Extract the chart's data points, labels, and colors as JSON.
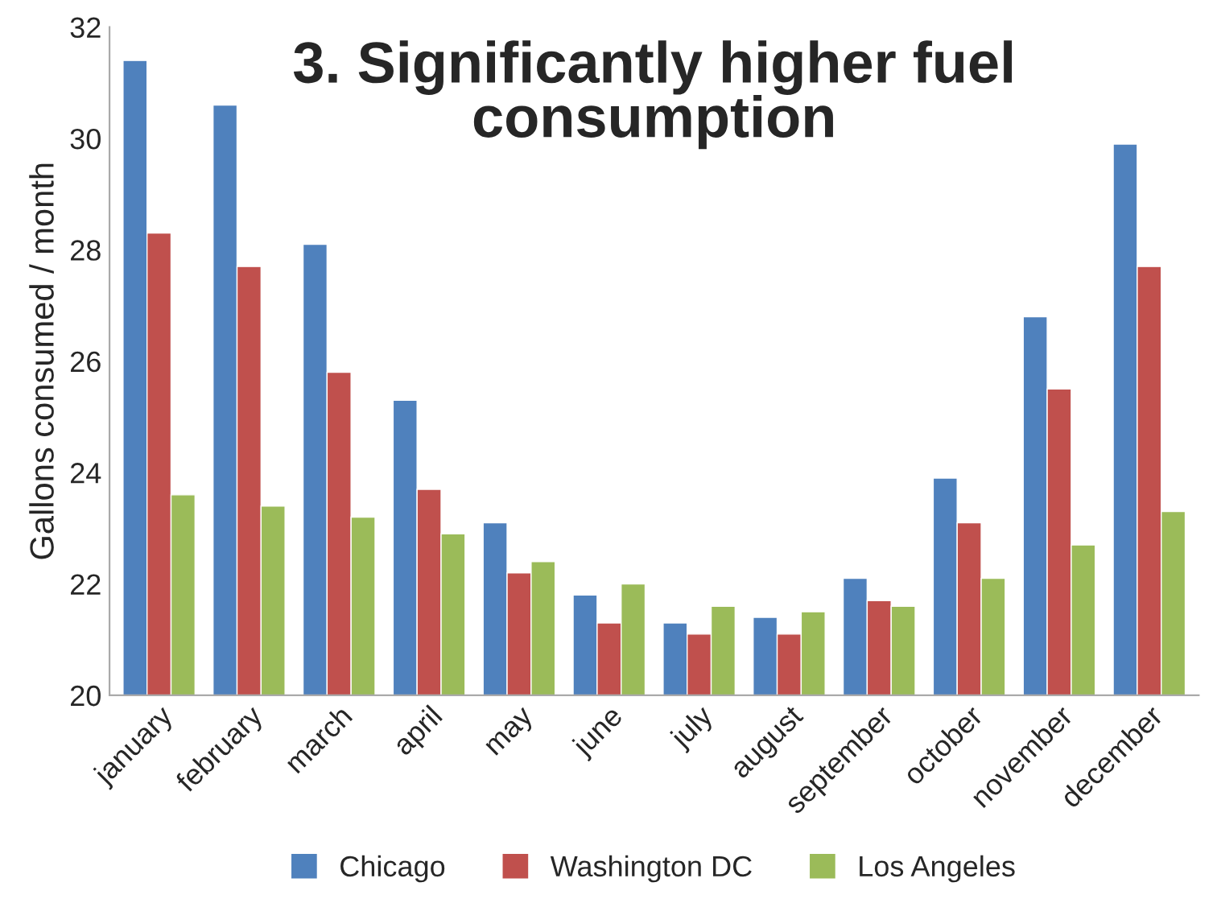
{
  "chart_data": {
    "type": "bar",
    "title": "3. Significantly higher fuel\nconsumption",
    "ylabel": "Gallons consumed / month",
    "categories": [
      "january",
      "february",
      "march",
      "april",
      "may",
      "june",
      "july",
      "august",
      "september",
      "october",
      "november",
      "december"
    ],
    "series": [
      {
        "name": "Chicago",
        "color": "#4f81bd",
        "values": [
          31.4,
          30.6,
          28.1,
          25.3,
          23.1,
          21.8,
          21.3,
          21.4,
          22.1,
          23.9,
          26.8,
          29.9
        ]
      },
      {
        "name": "Washington DC",
        "color": "#c0504d",
        "values": [
          28.3,
          27.7,
          25.8,
          23.7,
          22.2,
          21.3,
          21.1,
          21.1,
          21.7,
          23.1,
          25.5,
          27.7
        ]
      },
      {
        "name": "Los Angeles",
        "color": "#9bbb59",
        "values": [
          23.6,
          23.4,
          23.2,
          22.9,
          22.4,
          22.0,
          21.6,
          21.5,
          21.6,
          22.1,
          22.7,
          23.3
        ]
      }
    ],
    "ylim": [
      20,
      32
    ],
    "yticks": [
      20,
      22,
      24,
      26,
      28,
      30,
      32
    ],
    "grid": false,
    "legend": "bottom"
  }
}
